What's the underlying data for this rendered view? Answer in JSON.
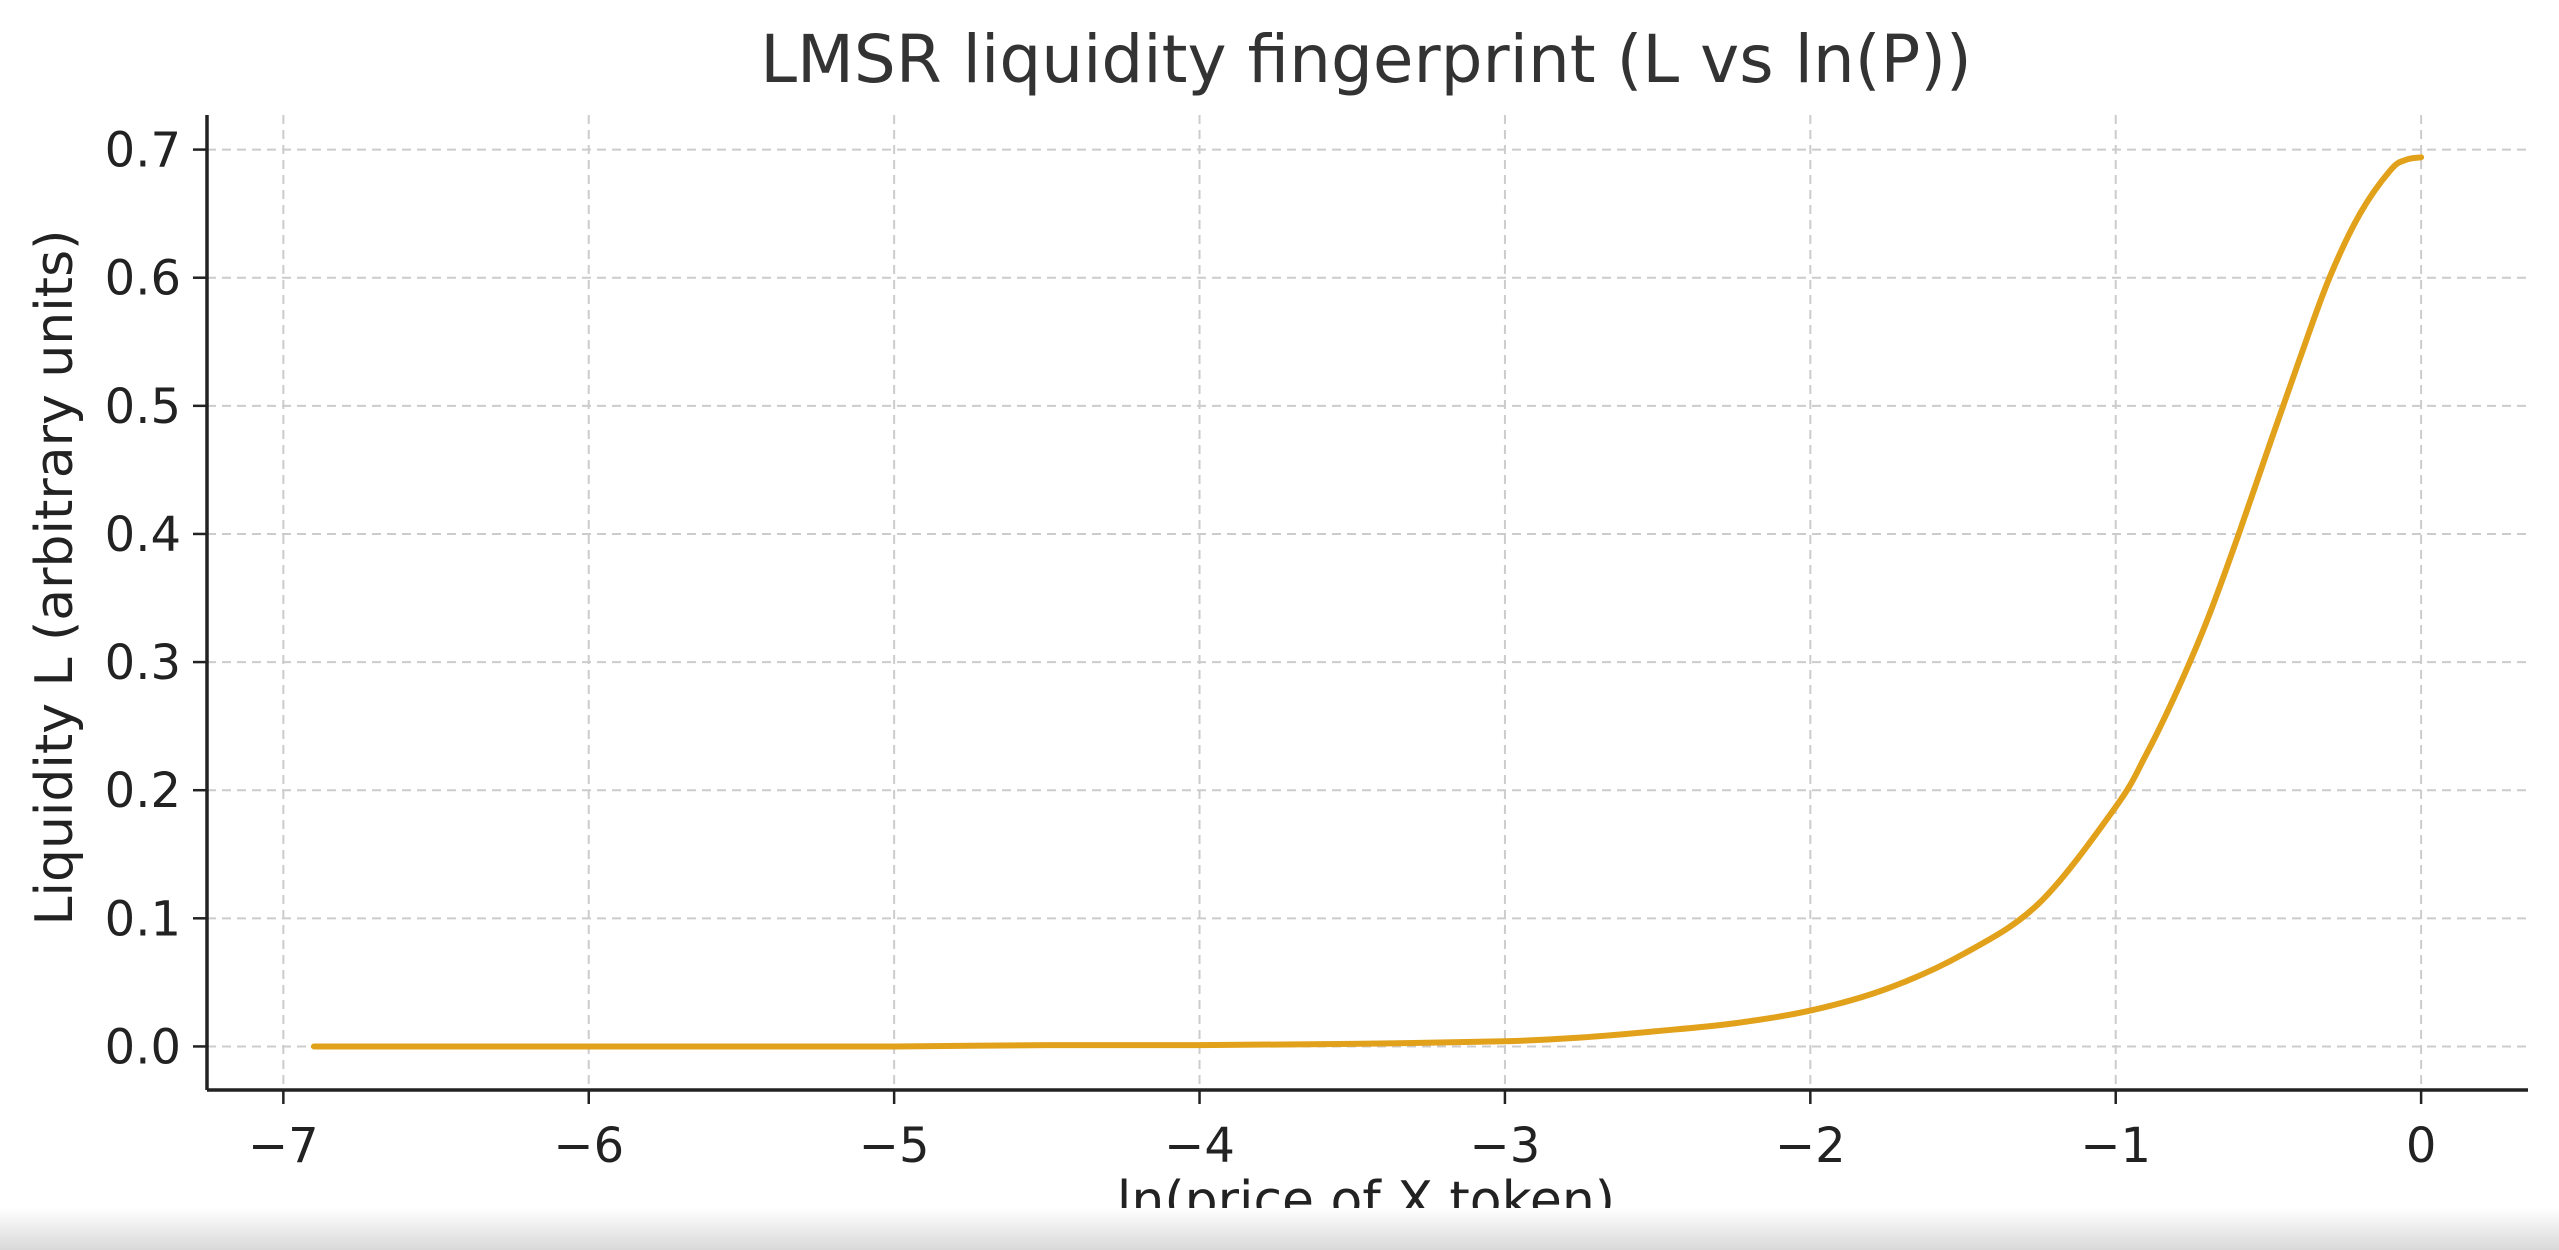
{
  "chart_data": {
    "type": "line",
    "title": "LMSR liquidity fingerprint (L vs ln(P))",
    "xlabel": "ln(price of X token)",
    "ylabel": "Liquidity L (arbitrary units)",
    "xlim": [
      -7.25,
      0.35
    ],
    "ylim": [
      -0.034,
      0.727
    ],
    "x_ticks": [
      -7,
      -6,
      -5,
      -4,
      -3,
      -2,
      -1,
      0
    ],
    "x_tick_labels": [
      "−7",
      "−6",
      "−5",
      "−4",
      "−3",
      "−2",
      "−1",
      "0"
    ],
    "y_ticks": [
      0.0,
      0.1,
      0.2,
      0.3,
      0.4,
      0.5,
      0.6,
      0.7
    ],
    "y_tick_labels": [
      "0.0",
      "0.1",
      "0.2",
      "0.3",
      "0.4",
      "0.5",
      "0.6",
      "0.7"
    ],
    "grid": true,
    "series": [
      {
        "color": "#E1A11B",
        "x": [
          -6.9,
          -6.5,
          -6.0,
          -5.5,
          -5.0,
          -4.5,
          -4.0,
          -3.5,
          -3.0,
          -2.75,
          -2.5,
          -2.25,
          -2.0,
          -1.75,
          -1.5,
          -1.25,
          -1.0,
          -0.9,
          -0.8,
          -0.7,
          -0.6,
          -0.5,
          -0.4,
          -0.3,
          -0.2,
          -0.1,
          -0.05,
          0.0
        ],
        "y": [
          0.0,
          0.0,
          0.0,
          0.0,
          0.0,
          0.001,
          0.001,
          0.002,
          0.004,
          0.007,
          0.012,
          0.018,
          0.028,
          0.045,
          0.072,
          0.112,
          0.187,
          0.228,
          0.277,
          0.333,
          0.398,
          0.467,
          0.535,
          0.6,
          0.65,
          0.684,
          0.692,
          0.694
        ]
      }
    ]
  }
}
